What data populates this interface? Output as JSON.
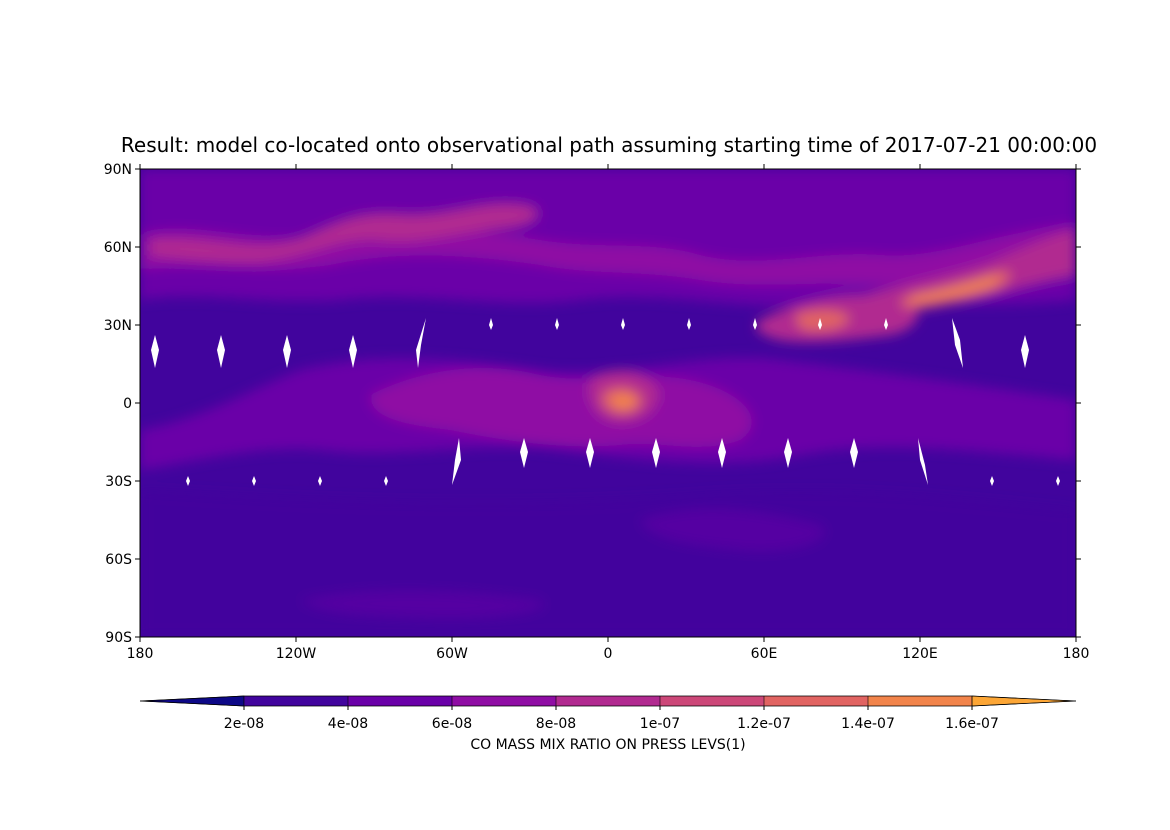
{
  "chart_data": {
    "type": "heatmap",
    "title": "Result: model co-located onto observational path assuming starting time of 2017-07-21 00:00:00",
    "xlabel": "",
    "ylabel": "",
    "x_ticks": [
      {
        "value": -180,
        "label": "180"
      },
      {
        "value": -120,
        "label": "120W"
      },
      {
        "value": -60,
        "label": "60W"
      },
      {
        "value": 0,
        "label": "0"
      },
      {
        "value": 60,
        "label": "60E"
      },
      {
        "value": 120,
        "label": "120E"
      },
      {
        "value": 180,
        "label": "180"
      }
    ],
    "y_ticks": [
      {
        "value": 90,
        "label": "90N"
      },
      {
        "value": 60,
        "label": "60N"
      },
      {
        "value": 30,
        "label": "30N"
      },
      {
        "value": 0,
        "label": "0"
      },
      {
        "value": -30,
        "label": "30S"
      },
      {
        "value": -60,
        "label": "60S"
      },
      {
        "value": -90,
        "label": "90S"
      }
    ],
    "xlim": [
      -180,
      180
    ],
    "ylim": [
      -90,
      90
    ],
    "grid": false,
    "colorbar": {
      "label": "CO MASS MIX RATIO ON PRESS LEVS(1)",
      "orientation": "horizontal",
      "position": "bottom",
      "extend": "both",
      "boundaries": [
        2e-08,
        4e-08,
        6e-08,
        8e-08,
        1e-07,
        1.2e-07,
        1.4e-07,
        1.6e-07
      ],
      "tick_labels": [
        "2e-08",
        "4e-08",
        "6e-08",
        "8e-08",
        "1e-07",
        "1.2e-07",
        "1.4e-07",
        "1.6e-07"
      ],
      "colors": [
        "#0d0887",
        "#41049d",
        "#6a00a8",
        "#8f0da4",
        "#b12a90",
        "#cc4778",
        "#e16462",
        "#f2844b",
        "#fca636"
      ]
    },
    "background_level_color": "#41049d",
    "features": [
      {
        "description": "high CO plume over tropical Africa",
        "lon": 5,
        "lat": 0,
        "value": 1.5e-07
      },
      {
        "description": "high CO band over East Asia / North Pacific",
        "lon": 125,
        "lat": 40,
        "value": 1.5e-07
      },
      {
        "description": "elevated CO over South Asia",
        "lon": 80,
        "lat": 30,
        "value": 1.3e-07
      },
      {
        "description": "elevated CO over Northern Hemisphere mid-latitudes",
        "lon": -60,
        "lat": 55,
        "value": 9e-08
      },
      {
        "description": "low CO over Southern Hemisphere oceans",
        "lon": 0,
        "lat": -60,
        "value": 3e-08
      }
    ]
  }
}
